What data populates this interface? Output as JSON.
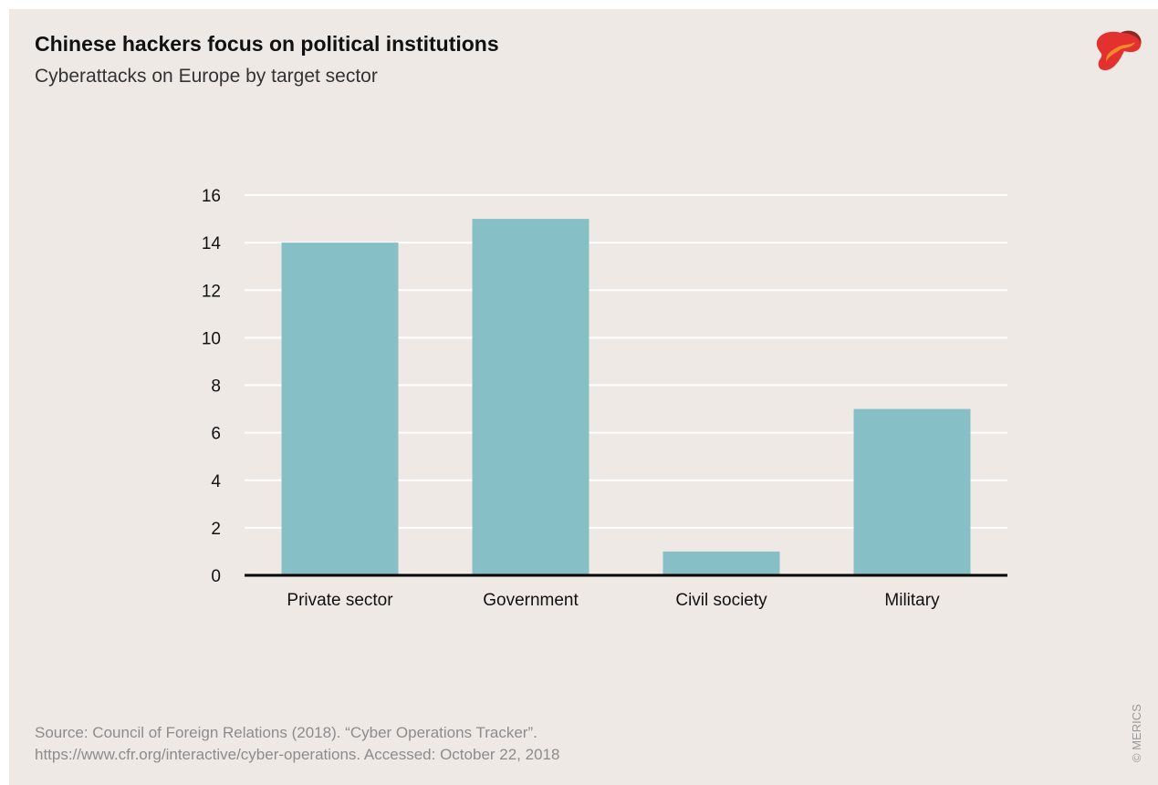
{
  "header": {
    "title": "Chinese hackers focus on political institutions",
    "subtitle": "Cyberattacks on Europe by target sector"
  },
  "footer": {
    "source_line1": "Source: Council of Foreign Relations (2018). “Cyber Operations Tracker”.",
    "source_line2": "https://www.cfr.org/interactive/cyber-operations. Accessed: October 22, 2018",
    "credit": "© MERICS"
  },
  "logo": {
    "icon": "merics-logo-icon"
  },
  "colors": {
    "background": "#efe9e5",
    "bar": "#87bfc7",
    "gridline": "#ffffff",
    "axis": "#000000",
    "logo_red": "#e2312f",
    "logo_orange": "#f08a2a",
    "logo_dark": "#8c2a22"
  },
  "chart_data": {
    "type": "bar",
    "title": "Chinese hackers focus on political institutions",
    "subtitle": "Cyberattacks on Europe by target sector",
    "categories": [
      "Private sector",
      "Government",
      "Civil society",
      "Military"
    ],
    "values": [
      14,
      15,
      1,
      7
    ],
    "ylim": [
      0,
      16
    ],
    "yticks": [
      0,
      2,
      4,
      6,
      8,
      10,
      12,
      14,
      16
    ],
    "xlabel": "",
    "ylabel": "",
    "grid": true,
    "legend": "none"
  }
}
